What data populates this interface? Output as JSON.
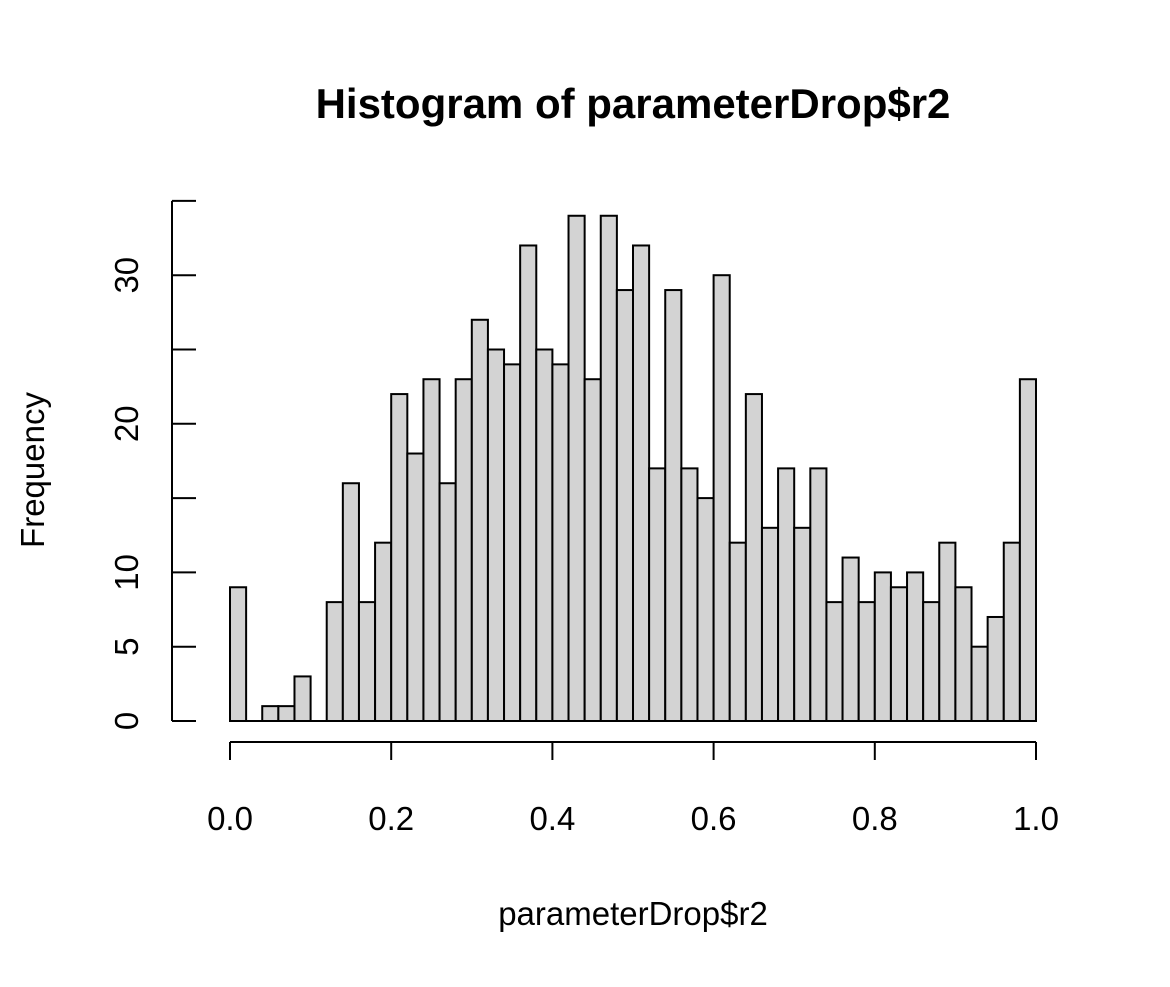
{
  "chart_data": {
    "type": "bar",
    "title": "Histogram of parameterDrop$r2",
    "xlabel": "parameterDrop$r2",
    "ylabel": "Frequency",
    "xlim": [
      0.0,
      1.0
    ],
    "ylim": [
      0,
      35
    ],
    "bin_width": 0.02,
    "bin_start": 0.0,
    "values": [
      9,
      0,
      1,
      1,
      3,
      0,
      8,
      16,
      8,
      12,
      22,
      18,
      23,
      16,
      23,
      27,
      25,
      24,
      32,
      25,
      24,
      34,
      23,
      34,
      29,
      32,
      17,
      29,
      17,
      15,
      30,
      12,
      22,
      13,
      17,
      13,
      17,
      8,
      11,
      8,
      10,
      9,
      10,
      8,
      12,
      9,
      5,
      7,
      12,
      23
    ],
    "x_ticks": [
      "0.0",
      "0.2",
      "0.4",
      "0.6",
      "0.8",
      "1.0"
    ],
    "y_ticks": [
      "0",
      "5",
      "10",
      "20",
      "30"
    ],
    "colors": {
      "bar_fill": "#d3d3d3",
      "bar_stroke": "#000000"
    },
    "grid": false,
    "legend": "none"
  }
}
